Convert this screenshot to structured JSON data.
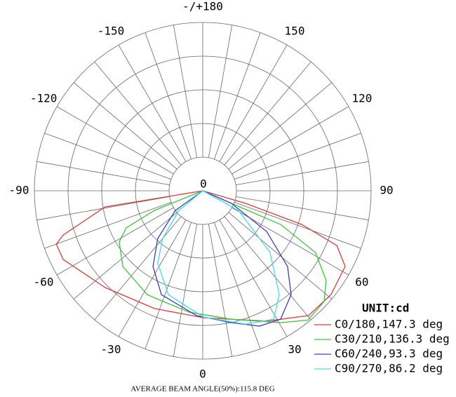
{
  "chart_data": {
    "type": "polar",
    "footer": "AVERAGE BEAM ANGLE(50%):115.8 DEG",
    "unit_label": "UNIT:cd",
    "rlim": [
      0,
      5
    ],
    "rticks": [
      0
    ],
    "rings": [
      1,
      2,
      3,
      4,
      5
    ],
    "angle_grid_step": 10,
    "angle_ticks": [
      {
        "value": 180,
        "label": "-/+180"
      },
      -150,
      150,
      -120,
      120,
      -90,
      90,
      -60,
      60,
      -30,
      30,
      0
    ],
    "series": [
      {
        "name": "C0/180,147.3 deg",
        "color": "#e03a3a",
        "angles": [
          -88,
          -80.6,
          -72.4,
          -70.0,
          -63.8,
          -45.2,
          -22.3,
          0.3,
          26.1,
          40.3,
          51.0,
          62.0,
          67.8,
          71.2,
          73.6,
          80
        ],
        "values": [
          0,
          2.94,
          4.35,
          4.63,
          4.62,
          4.08,
          3.78,
          3.77,
          4.31,
          4.86,
          4.9,
          4.79,
          4.3,
          3.1,
          1.33,
          0
        ]
      },
      {
        "name": "C30/210,136.3 deg",
        "color": "#3cc43c",
        "angles": [
          -70,
          -67.9,
          -64.1,
          -58.5,
          -46.5,
          -28.1,
          -6.3,
          12.6,
          30.6,
          39.1,
          47.6,
          54.0,
          61.3,
          66.6,
          66.3,
          66
        ],
        "values": [
          0,
          1.55,
          2.53,
          2.91,
          3.27,
          3.5,
          3.63,
          3.91,
          4.55,
          4.95,
          4.88,
          4.53,
          3.82,
          2.52,
          0.93,
          0
        ]
      },
      {
        "name": "C60/240,93.3 deg",
        "color": "#3c3cc4",
        "angles": [
          -56,
          -54.3,
          -43.3,
          -33.3,
          -21.7,
          -2.9,
          12.3,
          22.8,
          31.2,
          40.4,
          48.2,
          57.5,
          66.3,
          66
        ],
        "values": [
          0,
          1.0,
          1.95,
          2.69,
          3.32,
          3.71,
          4.01,
          4.36,
          4.46,
          4.05,
          3.38,
          2.25,
          0.93,
          0
        ]
      },
      {
        "name": "C90/270,86.2 deg",
        "color": "#3ce0e8",
        "angles": [
          -52,
          -50.5,
          -40.0,
          -31.9,
          -18.3,
          0.3,
          17.8,
          28.9,
          36.4,
          47.5,
          61.2,
          62
        ],
        "values": [
          0,
          0.92,
          1.85,
          2.53,
          3.25,
          3.75,
          4.16,
          4.36,
          3.83,
          2.71,
          1.21,
          0
        ]
      }
    ]
  }
}
